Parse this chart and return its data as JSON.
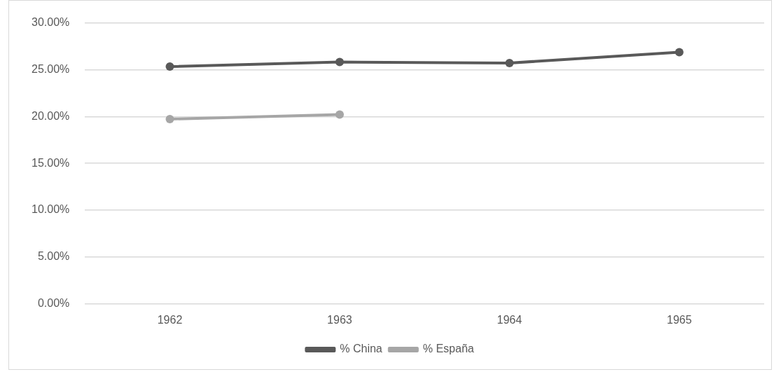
{
  "chart_data": {
    "type": "line",
    "categories": [
      "1962",
      "1963",
      "1964",
      "1965"
    ],
    "series": [
      {
        "name": "% China",
        "color": "#595959",
        "values": [
          25.33,
          25.82,
          25.71,
          26.87
        ]
      },
      {
        "name": "% España",
        "color": "#a6a6a6",
        "values": [
          19.73,
          20.22,
          null,
          null
        ]
      }
    ],
    "ylim": [
      0,
      30
    ],
    "yticks": [
      {
        "value": 0,
        "label": "0.00%"
      },
      {
        "value": 5,
        "label": "5.00%"
      },
      {
        "value": 10,
        "label": "10.00%"
      },
      {
        "value": 15,
        "label": "15.00%"
      },
      {
        "value": 20,
        "label": "20.00%"
      },
      {
        "value": 25,
        "label": "25.00%"
      },
      {
        "value": 30,
        "label": "30.00%"
      }
    ],
    "grid": "y",
    "legend": "bottom",
    "marker": "circle",
    "line_style": "solid"
  }
}
